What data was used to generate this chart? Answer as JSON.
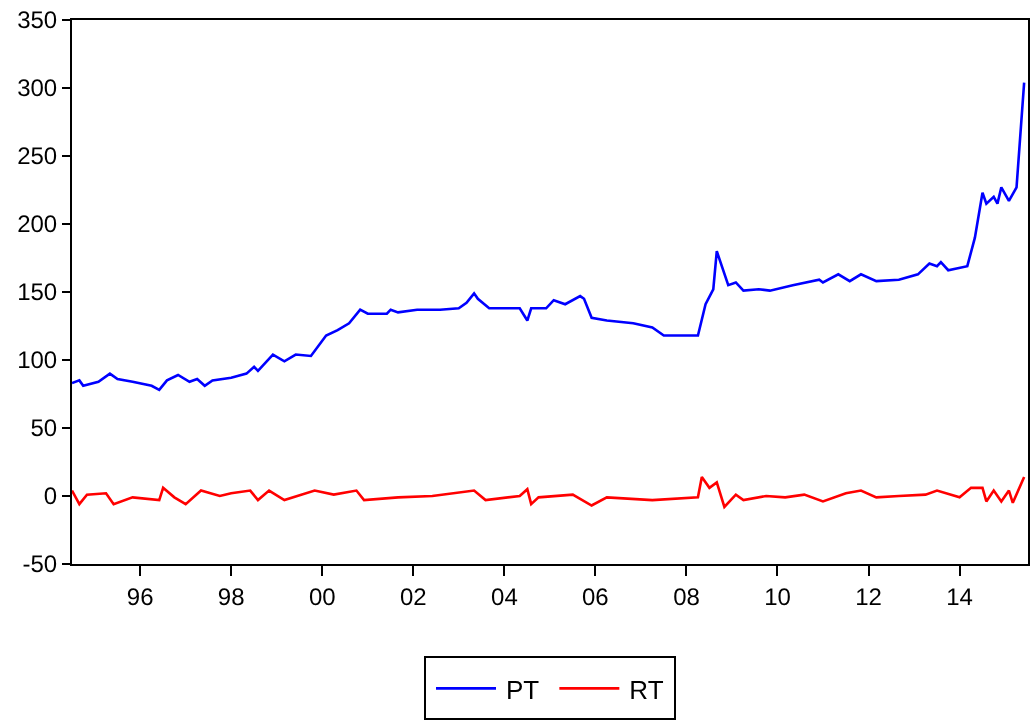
{
  "chart_data": {
    "type": "line",
    "xlim": [
      "1995-01",
      "2016-01"
    ],
    "xticks": [
      {
        "value": "1996-07",
        "label": "96"
      },
      {
        "value": "1998-07",
        "label": "98"
      },
      {
        "value": "2000-07",
        "label": "00"
      },
      {
        "value": "2002-07",
        "label": "02"
      },
      {
        "value": "2004-07",
        "label": "04"
      },
      {
        "value": "2006-07",
        "label": "06"
      },
      {
        "value": "2008-07",
        "label": "08"
      },
      {
        "value": "2010-07",
        "label": "10"
      },
      {
        "value": "2012-07",
        "label": "12"
      },
      {
        "value": "2014-07",
        "label": "14"
      }
    ],
    "ylim": [
      -50,
      350
    ],
    "yticks": [
      -50,
      0,
      50,
      100,
      150,
      200,
      250,
      300,
      350
    ],
    "legend": "bottom",
    "marker": "none",
    "line_style": "solid",
    "series": [
      {
        "name": "PT",
        "color": "#0000ff",
        "x": [
          "1995-01",
          "1995-03",
          "1995-04",
          "1995-08",
          "1995-11",
          "1996-01",
          "1996-05",
          "1996-10",
          "1996-12",
          "1997-02",
          "1997-05",
          "1997-08",
          "1997-10",
          "1997-12",
          "1998-02",
          "1998-07",
          "1998-11",
          "1999-01",
          "1999-02",
          "1999-06",
          "1999-09",
          "1999-12",
          "2000-04",
          "2000-08",
          "2000-11",
          "2001-02",
          "2001-05",
          "2001-07",
          "2001-12",
          "2002-01",
          "2002-03",
          "2002-08",
          "2003-02",
          "2003-07",
          "2003-09",
          "2003-11",
          "2003-12",
          "2004-03",
          "2004-11",
          "2005-01",
          "2005-02",
          "2005-06",
          "2005-08",
          "2005-11",
          "2006-03",
          "2006-04",
          "2006-06",
          "2006-10",
          "2007-05",
          "2007-10",
          "2008-01",
          "2008-10",
          "2008-12",
          "2009-02",
          "2009-03",
          "2009-06",
          "2009-08",
          "2009-10",
          "2010-02",
          "2010-05",
          "2010-11",
          "2011-06",
          "2011-07",
          "2011-11",
          "2012-02",
          "2012-05",
          "2012-09",
          "2013-03",
          "2013-08",
          "2013-11",
          "2014-01",
          "2014-02",
          "2014-04",
          "2014-09",
          "2014-11",
          "2015-01",
          "2015-02",
          "2015-04",
          "2015-05",
          "2015-06",
          "2015-08",
          "2015-10",
          "2015-12"
        ],
        "values": [
          83,
          85,
          81,
          84,
          90,
          86,
          84,
          81,
          78,
          85,
          89,
          84,
          86,
          81,
          85,
          87,
          90,
          95,
          92,
          104,
          99,
          104,
          103,
          118,
          122,
          127,
          137,
          134,
          134,
          137,
          135,
          137,
          137,
          138,
          142,
          149,
          145,
          138,
          138,
          129,
          138,
          138,
          144,
          141,
          147,
          145,
          131,
          129,
          127,
          124,
          118,
          118,
          141,
          152,
          180,
          155,
          157,
          151,
          152,
          151,
          155,
          159,
          157,
          163,
          158,
          163,
          158,
          159,
          163,
          171,
          169,
          172,
          166,
          169,
          190,
          223,
          215,
          220,
          215,
          227,
          217,
          227,
          304
        ]
      },
      {
        "name": "RT",
        "color": "#ff0000",
        "x": [
          "1995-01",
          "1995-03",
          "1995-05",
          "1995-10",
          "1995-12",
          "1996-05",
          "1996-12",
          "1997-01",
          "1997-04",
          "1997-07",
          "1997-11",
          "1998-04",
          "1998-07",
          "1998-12",
          "1999-02",
          "1999-05",
          "1999-09",
          "2000-05",
          "2000-10",
          "2001-04",
          "2001-06",
          "2002-03",
          "2002-12",
          "2003-11",
          "2004-02",
          "2004-11",
          "2005-01",
          "2005-02",
          "2005-04",
          "2006-01",
          "2006-06",
          "2006-10",
          "2007-10",
          "2008-10",
          "2008-11",
          "2009-01",
          "2009-03",
          "2009-05",
          "2009-08",
          "2009-10",
          "2010-04",
          "2010-09",
          "2011-02",
          "2011-07",
          "2012-01",
          "2012-05",
          "2012-09",
          "2013-03",
          "2013-10",
          "2014-01",
          "2014-07",
          "2014-10",
          "2015-01",
          "2015-02",
          "2015-04",
          "2015-06",
          "2015-08",
          "2015-09",
          "2015-12"
        ],
        "values": [
          4,
          -6,
          1,
          2,
          -6,
          -1,
          -3,
          6,
          -1,
          -6,
          4,
          0,
          2,
          4,
          -3,
          4,
          -3,
          4,
          1,
          4,
          -3,
          -1,
          0,
          4,
          -3,
          0,
          5,
          -6,
          -1,
          1,
          -7,
          -1,
          -3,
          -1,
          14,
          6,
          10,
          -8,
          1,
          -3,
          0,
          -1,
          1,
          -4,
          2,
          4,
          -1,
          0,
          1,
          4,
          -1,
          6,
          6,
          -4,
          4,
          -4,
          4,
          -5,
          14
        ]
      }
    ]
  }
}
